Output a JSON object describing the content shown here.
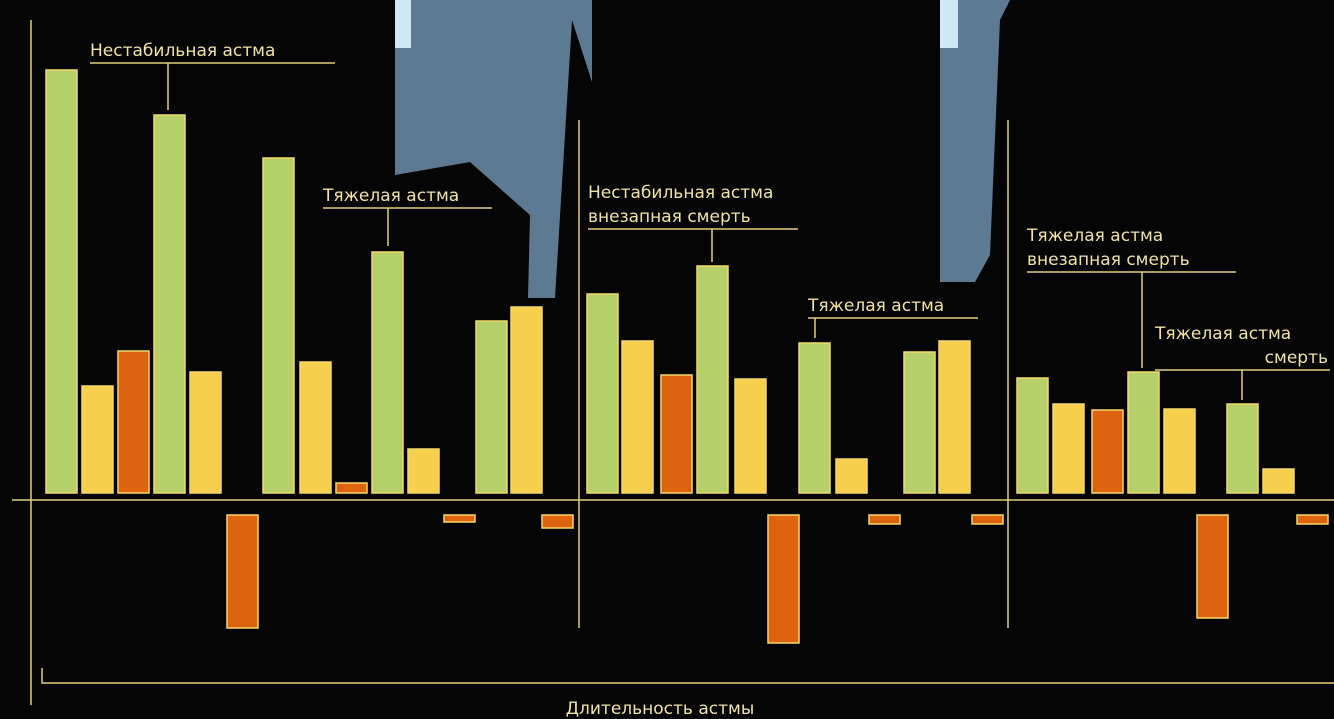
{
  "chart_data": {
    "type": "bar",
    "x_label": "Длительность астмы",
    "values": [
      423,
      107,
      142,
      378,
      121,
      -113,
      335,
      131,
      10,
      241,
      44,
      -7,
      172,
      186,
      -13,
      199,
      152,
      118,
      227,
      114,
      -128,
      150,
      34,
      -9,
      141,
      152,
      -9,
      115,
      89,
      83,
      121,
      84,
      -103,
      89,
      24,
      -9
    ],
    "colors": [
      "#b5cf6b",
      "#f7cf4e",
      "#dd6310",
      "#b5cf6b",
      "#f7cf4e",
      "#dd6310",
      "#b5cf6b",
      "#f7cf4e",
      "#dd6310",
      "#b5cf6b",
      "#f7cf4e",
      "#dd6310",
      "#b5cf6b",
      "#f7cf4e",
      "#dd6310",
      "#b5cf6b",
      "#f7cf4e",
      "#dd6310",
      "#b5cf6b",
      "#f7cf4e",
      "#dd6310",
      "#b5cf6b",
      "#f7cf4e",
      "#dd6310",
      "#b5cf6b",
      "#f7cf4e",
      "#dd6310",
      "#b5cf6b",
      "#f7cf4e",
      "#dd6310",
      "#b5cf6b",
      "#f7cf4e",
      "#dd6310",
      "#b5cf6b",
      "#f7cf4e",
      "#dd6310"
    ],
    "annotations": [
      [
        "Нестабильная астма"
      ],
      [
        "Тяжелая астма"
      ],
      [
        "Нестабильная астма",
        "внезапная смерть"
      ],
      [
        "Тяжелая астма"
      ],
      [
        "Тяжелая астма",
        "внезапная смерть"
      ],
      [
        "Тяжелая астма",
        "смерть"
      ]
    ]
  }
}
